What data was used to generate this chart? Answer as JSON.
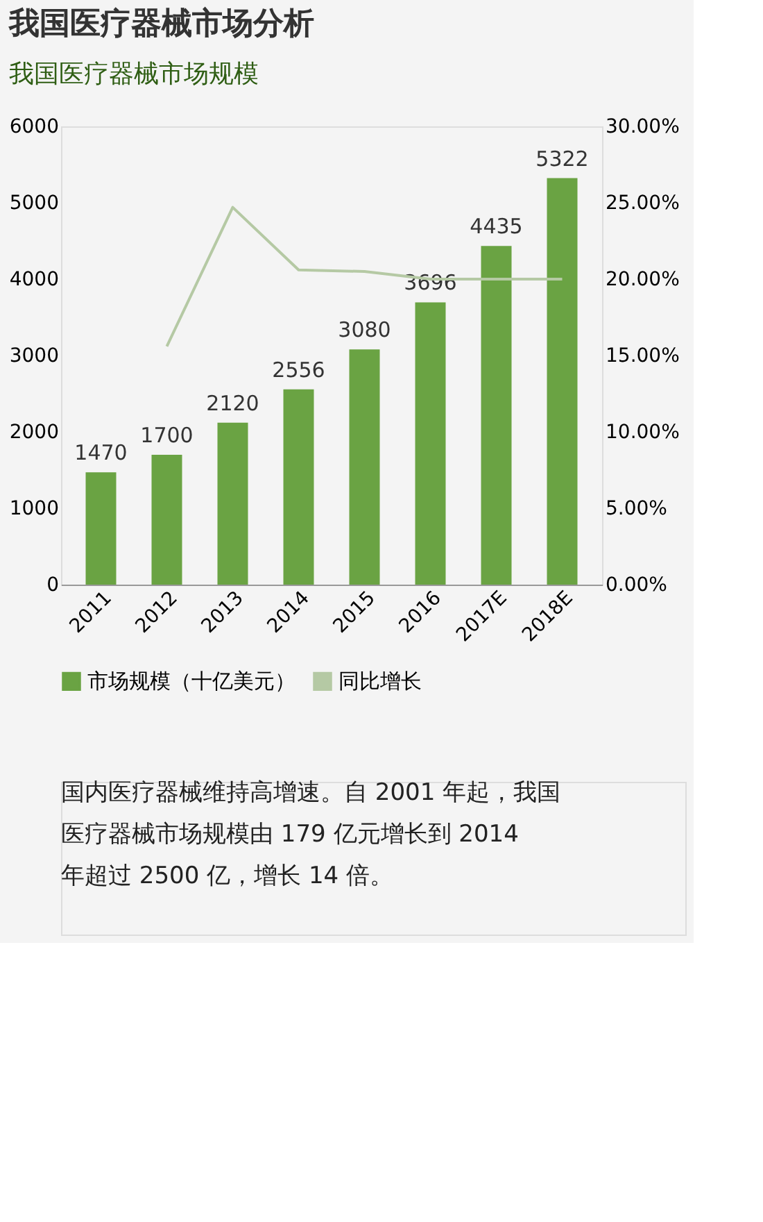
{
  "chart_data": {
    "type": "bar",
    "title": "我国医疗器械市场分析",
    "subtitle": "我国医疗器械市场规模",
    "categories": [
      "2011",
      "2012",
      "2013",
      "2014",
      "2015",
      "2016",
      "2017E",
      "2018E"
    ],
    "series": [
      {
        "name": "市场规模（十亿美元）",
        "color": "#6aa343",
        "values": [
          1470,
          1700,
          2120,
          2556,
          3080,
          3696,
          4435,
          5322
        ],
        "value_labels": [
          "1470",
          "1700",
          "2120",
          "2556",
          "3080",
          "3696",
          "4435",
          "5322"
        ]
      },
      {
        "name": "同比增长",
        "type": "line",
        "axis": "y2",
        "color": "#b5c9a4",
        "values": [
          null,
          15.6,
          24.7,
          20.6,
          20.5,
          20.0,
          20.0,
          20.0
        ]
      }
    ],
    "ylim": [
      0,
      6000
    ],
    "yticks": [
      0,
      1000,
      2000,
      3000,
      4000,
      5000,
      6000
    ],
    "y2lim": [
      0,
      30
    ],
    "y2ticks": [
      {
        "value": 0,
        "label": "0.00%"
      },
      {
        "value": 5,
        "label": "5.00%"
      },
      {
        "value": 10,
        "label": "10.00%"
      },
      {
        "value": 15,
        "label": "15.00%"
      },
      {
        "value": 20,
        "label": "20.00%"
      },
      {
        "value": 25,
        "label": "25.00%"
      },
      {
        "value": 30,
        "label": "30.00%"
      }
    ],
    "grid": false,
    "legend": "bottom",
    "marker": "none",
    "line_style": "solid",
    "annotations": [
      "国内医疗器械维持高增速。自 2001 年起，我国医疗器械市场规模由 179 亿元增长到 2014 年超过 2500 亿，增长 14 倍。"
    ]
  }
}
